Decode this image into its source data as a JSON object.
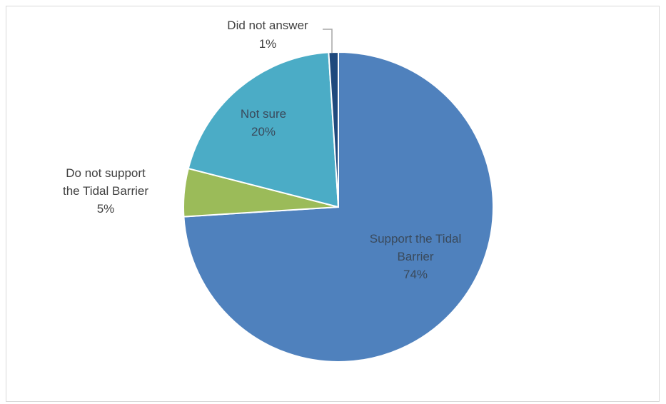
{
  "chart_data": {
    "type": "pie",
    "title": "",
    "slices": [
      {
        "label_lines": [
          "Support the Tidal",
          "Barrier"
        ],
        "value": 74,
        "percent_label": "74%",
        "color": "#4f81bd",
        "label_color": "#3a4a5c"
      },
      {
        "label_lines": [
          "Do not support",
          "the Tidal Barrier"
        ],
        "value": 5,
        "percent_label": "5%",
        "color": "#9bbb59",
        "label_color": "#404040"
      },
      {
        "label_lines": [
          "Not sure"
        ],
        "value": 20,
        "percent_label": "20%",
        "color": "#4bacc6",
        "label_color": "#3a4a5c"
      },
      {
        "label_lines": [
          "Did not answer"
        ],
        "value": 1,
        "percent_label": "1%",
        "color": "#1f497d",
        "label_color": "#404040"
      }
    ],
    "start_angle_deg": 0,
    "direction": "clockwise",
    "legend": "none"
  }
}
